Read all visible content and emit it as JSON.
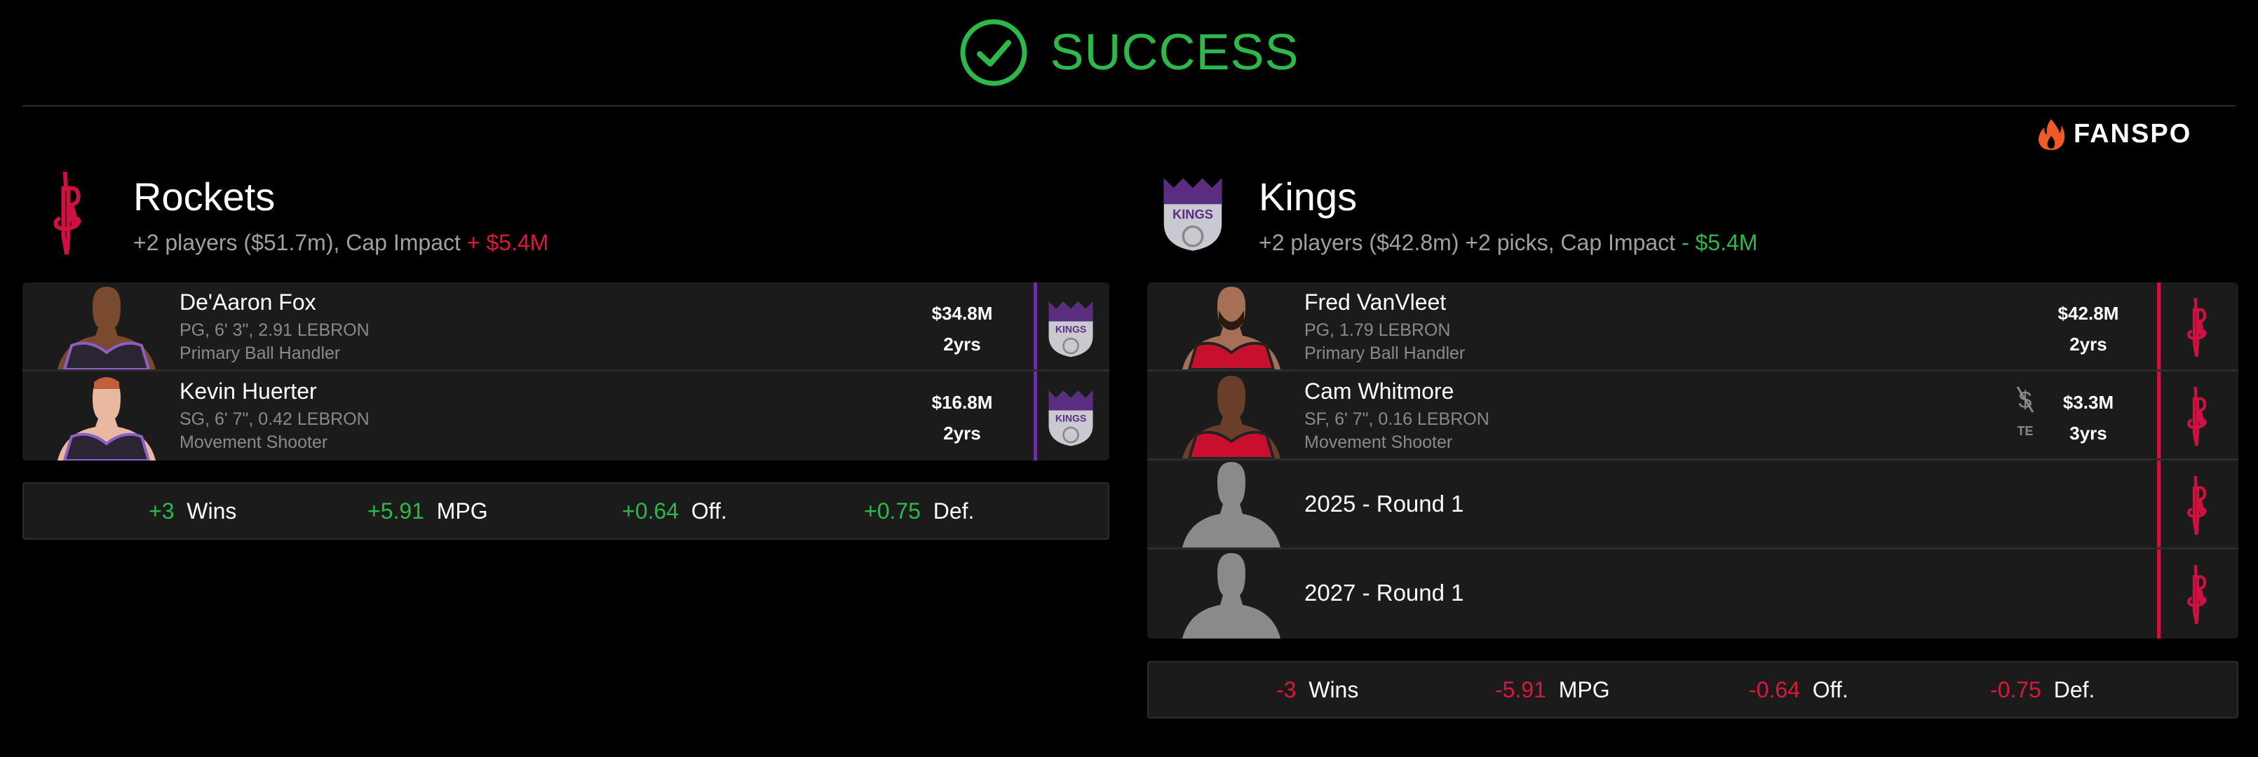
{
  "header": {
    "status": "SUCCESS",
    "status_color": "#2db84a",
    "icon": "check-circle-icon"
  },
  "brand": {
    "name": "FANSPO",
    "icon": "flame-icon"
  },
  "teams": [
    {
      "name": "Rockets",
      "logo": "rockets-logo",
      "summary": "+2 players ($51.7m), Cap Impact",
      "cap_impact": "+ $5.4M",
      "cap_color": "#d8183c",
      "incoming": [
        {
          "name": "De'Aaron Fox",
          "info": "PG, 6' 3\", 2.91 LEBRON",
          "role": "Primary Ball Handler",
          "salary": "$34.8M",
          "years": "2yrs",
          "from": "kings-logo",
          "jersey": "#2b2533"
        },
        {
          "name": "Kevin Huerter",
          "info": "SG, 6' 7\", 0.42 LEBRON",
          "role": "Movement Shooter",
          "salary": "$16.8M",
          "years": "2yrs",
          "from": "kings-logo",
          "jersey": "#2b2533"
        }
      ],
      "stats": [
        {
          "value": "+3",
          "label": "Wins"
        },
        {
          "value": "+5.91",
          "label": "MPG"
        },
        {
          "value": "+0.64",
          "label": "Off."
        },
        {
          "value": "+0.75",
          "label": "Def."
        }
      ]
    },
    {
      "name": "Kings",
      "logo": "kings-logo",
      "summary": "+2 players ($42.8m) +2 picks, Cap Impact",
      "cap_impact": "- $5.4M",
      "cap_color": "#2db84a",
      "incoming": [
        {
          "name": "Fred VanVleet",
          "info": "PG, 1.79 LEBRON",
          "role": "Primary Ball Handler",
          "salary": "$42.8M",
          "years": "2yrs",
          "from": "rockets-logo",
          "jersey": "#c8102e"
        },
        {
          "name": "Cam Whitmore",
          "info": "SF, 6' 7\", 0.16 LEBRON",
          "role": "Movement Shooter",
          "salary": "$3.3M",
          "years": "3yrs",
          "from": "rockets-logo",
          "jersey": "#c8102e",
          "exception": "TE"
        }
      ],
      "picks": [
        {
          "label": "2025 - Round 1",
          "from": "rockets-logo"
        },
        {
          "label": "2027 - Round 1",
          "from": "rockets-logo"
        }
      ],
      "stats": [
        {
          "value": "-3",
          "label": "Wins"
        },
        {
          "value": "-5.91",
          "label": "MPG"
        },
        {
          "value": "-0.64",
          "label": "Off."
        },
        {
          "value": "-0.75",
          "label": "Def."
        }
      ]
    }
  ],
  "colors": {
    "kings": "#5a2d81",
    "rockets": "#ce1141",
    "positive": "#2db84a",
    "negative": "#d8183c"
  }
}
